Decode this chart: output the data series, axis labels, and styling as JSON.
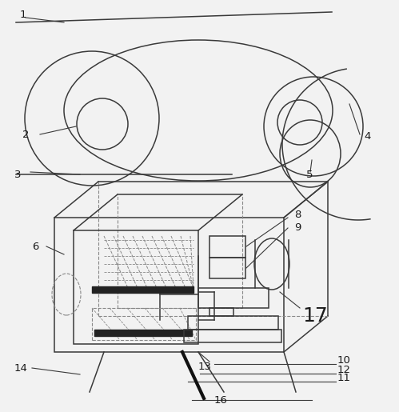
{
  "bg_color": "#f2f2f2",
  "line_color": "#3a3a3a",
  "dashed_color": "#888888",
  "label_color": "#1a1a1a",
  "fig_w": 4.99,
  "fig_h": 5.15,
  "dpi": 100
}
